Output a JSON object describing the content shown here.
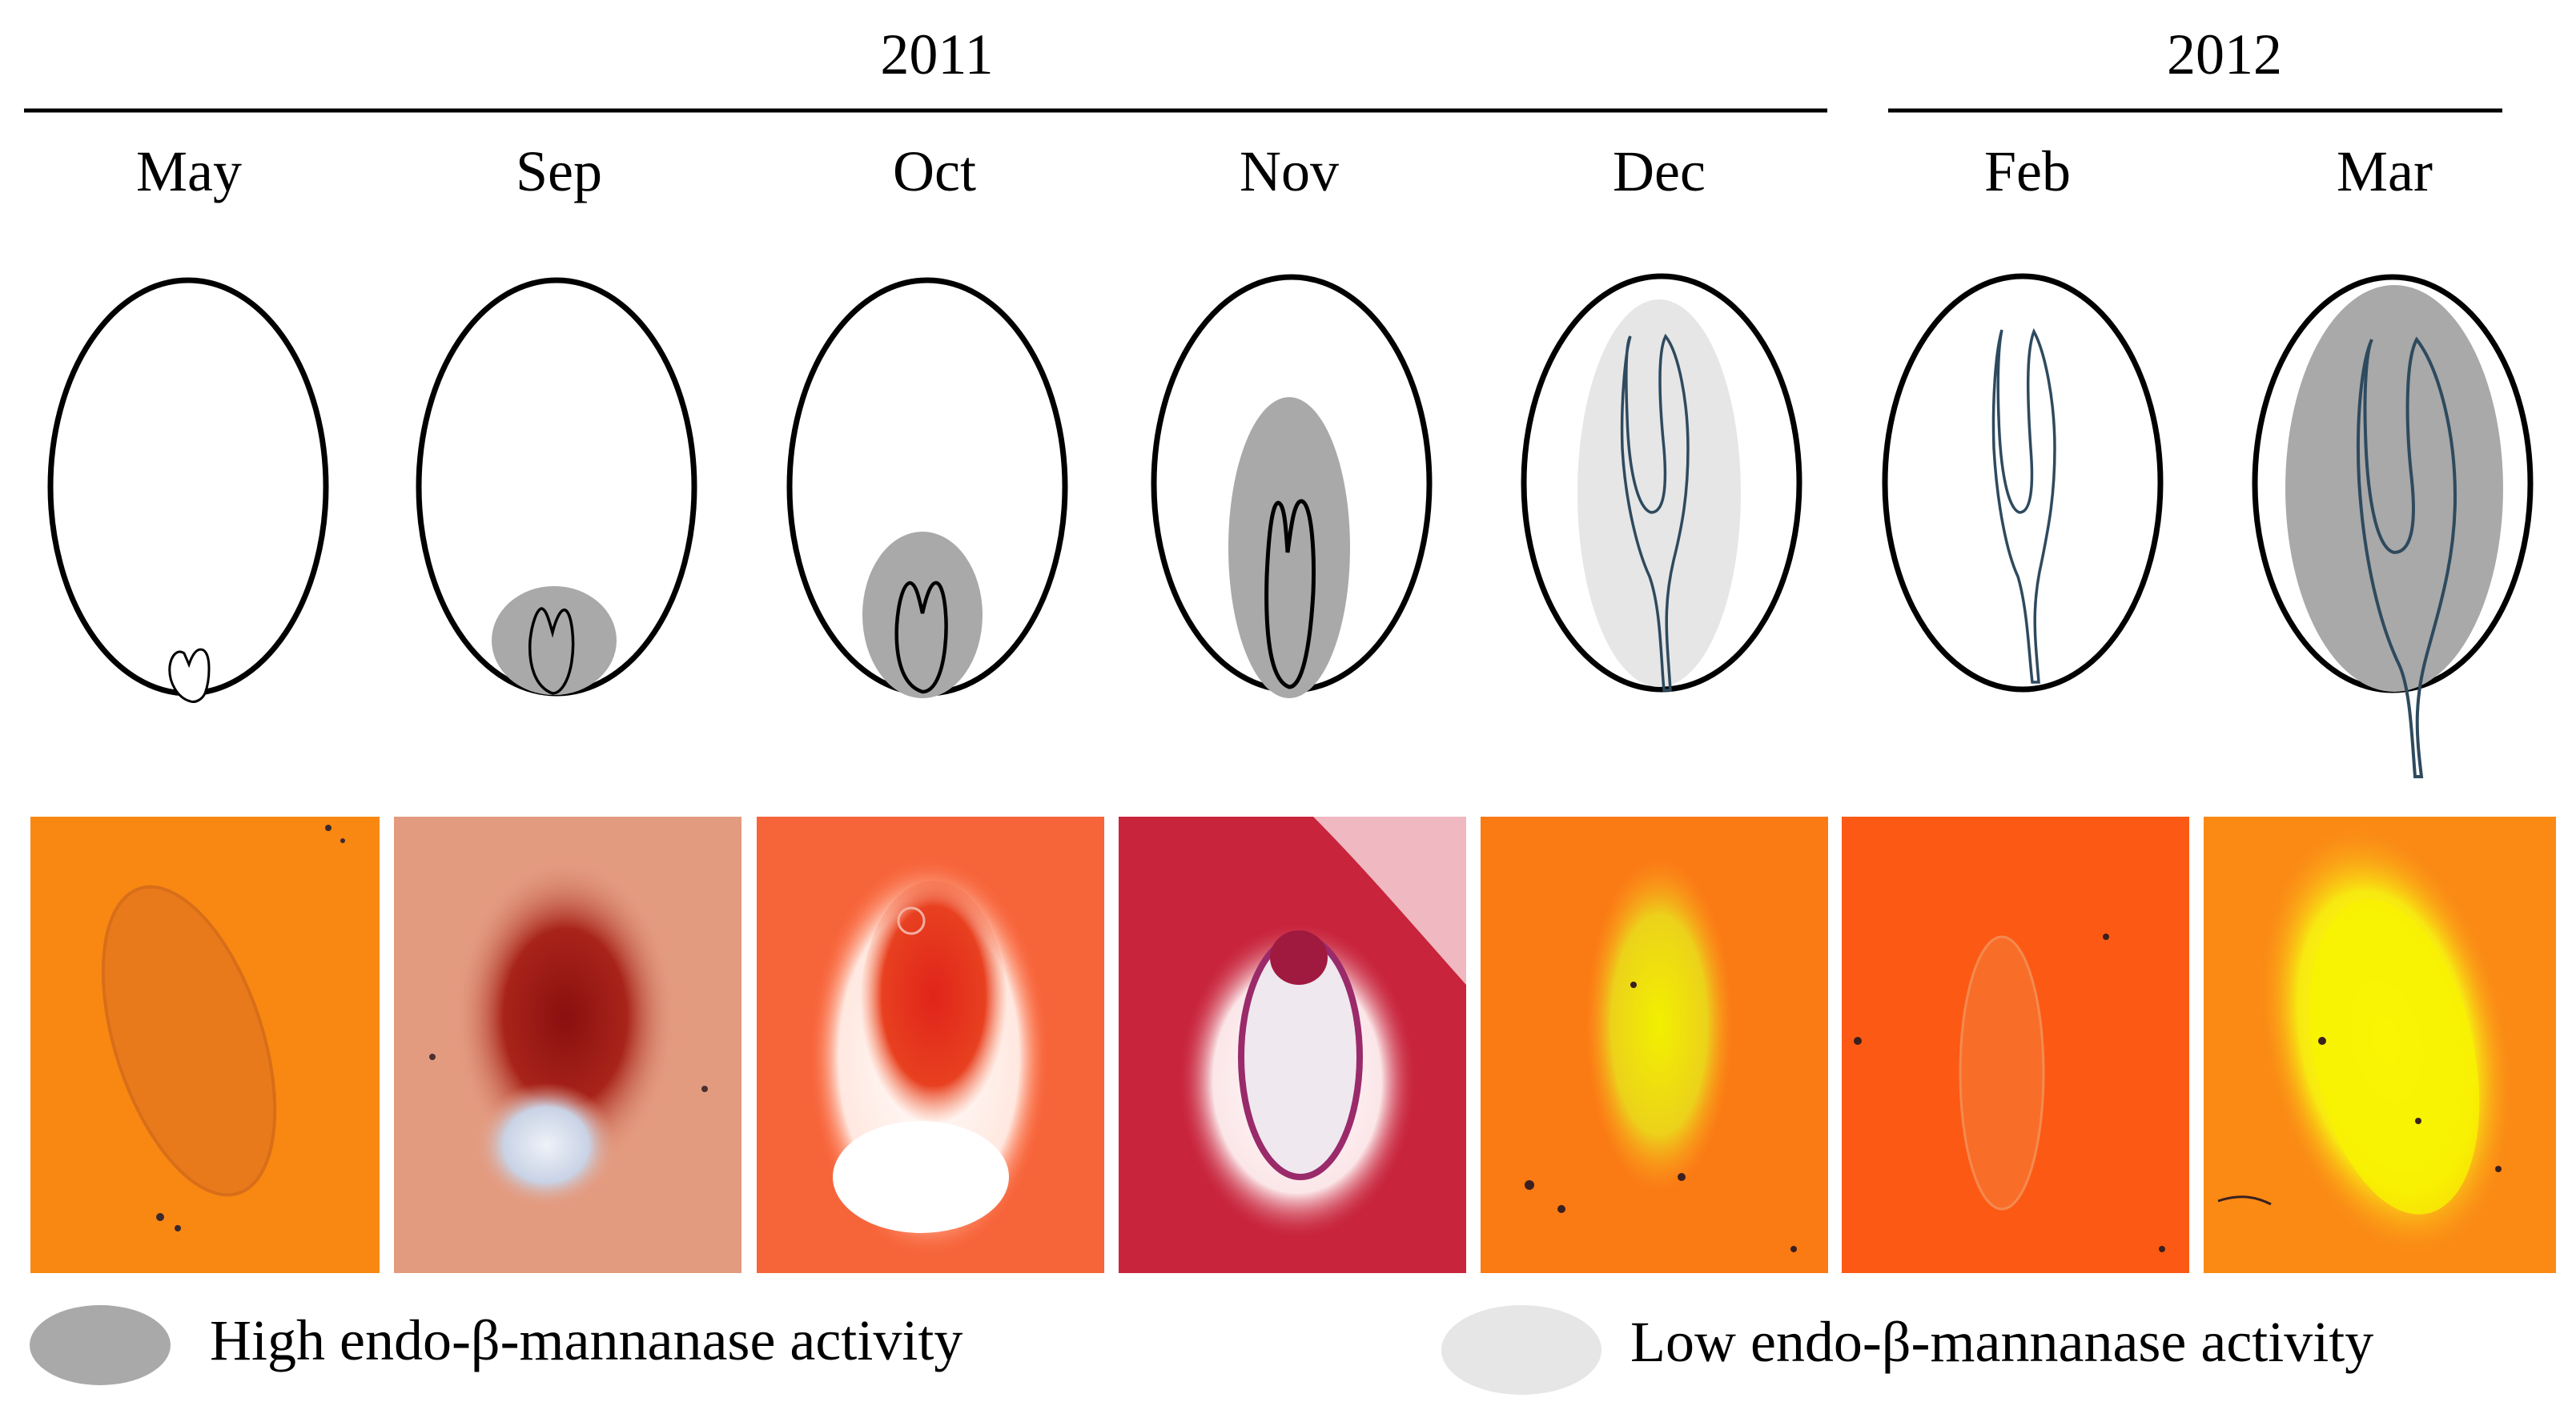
{
  "years": [
    {
      "label": "2011"
    },
    {
      "label": "2012"
    }
  ],
  "months": [
    "May",
    "Sep",
    "Oct",
    "Nov",
    "Dec",
    "Feb",
    "Mar"
  ],
  "legend": {
    "high": "High endo-β-mannanase activity",
    "low": "Low endo-β-mannanase activity"
  },
  "colors": {
    "high_activity": "#a9a9a9",
    "low_activity": "#e6e6e6",
    "embryo_line_early": "#000000",
    "embryo_line_late": "#2e4a5e"
  }
}
